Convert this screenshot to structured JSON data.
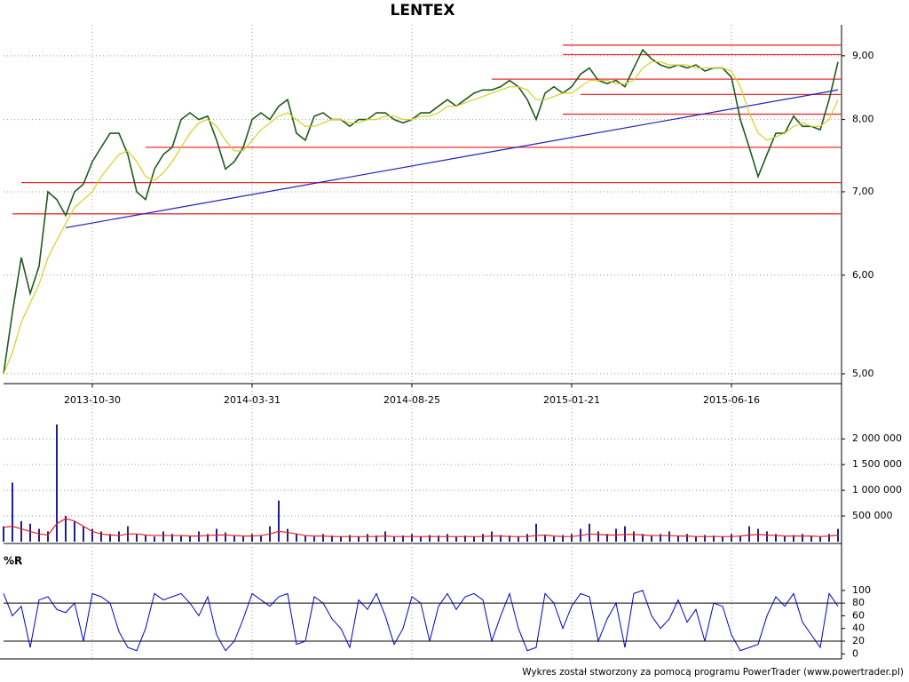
{
  "chart_data": [
    {
      "type": "line",
      "title": "LENTEX",
      "log": true,
      "grid": true,
      "categories": [
        null,
        null,
        null,
        null,
        null,
        null,
        null,
        null,
        null,
        null,
        "2013-10-30",
        null,
        null,
        null,
        null,
        null,
        null,
        null,
        null,
        null,
        null,
        null,
        null,
        null,
        null,
        null,
        null,
        null,
        "2014-03-31",
        null,
        null,
        null,
        null,
        null,
        null,
        null,
        null,
        null,
        null,
        null,
        null,
        null,
        null,
        null,
        null,
        null,
        "2014-08-25",
        null,
        null,
        null,
        null,
        null,
        null,
        null,
        null,
        null,
        null,
        null,
        null,
        null,
        null,
        null,
        null,
        null,
        "2015-01-21",
        null,
        null,
        null,
        null,
        null,
        null,
        null,
        null,
        null,
        null,
        null,
        null,
        null,
        null,
        null,
        null,
        null,
        "2015-06-16",
        null,
        null,
        null,
        null,
        null,
        null,
        null,
        null,
        null,
        null,
        null,
        null
      ],
      "series": [
        {
          "color": "#1f5a1f",
          "values": [
            5.0,
            5.6,
            6.2,
            5.8,
            6.1,
            7.0,
            6.9,
            6.7,
            7.0,
            7.1,
            7.4,
            7.6,
            7.8,
            7.8,
            7.5,
            7.0,
            6.9,
            7.3,
            7.5,
            7.6,
            8.0,
            8.1,
            8.0,
            8.05,
            7.7,
            7.3,
            7.4,
            7.6,
            8.0,
            8.1,
            8.0,
            8.2,
            8.3,
            7.8,
            7.7,
            8.05,
            8.1,
            8.0,
            8.0,
            7.9,
            8.0,
            8.0,
            8.1,
            8.1,
            8.0,
            7.95,
            8.0,
            8.1,
            8.1,
            8.2,
            8.3,
            8.2,
            8.3,
            8.4,
            8.45,
            8.45,
            8.5,
            8.6,
            8.5,
            8.3,
            8.0,
            8.4,
            8.5,
            8.4,
            8.5,
            8.7,
            8.8,
            8.6,
            8.55,
            8.6,
            8.5,
            8.8,
            9.1,
            8.95,
            8.85,
            8.8,
            8.85,
            8.8,
            8.85,
            8.75,
            8.8,
            8.8,
            8.65,
            8.0,
            7.6,
            7.2,
            7.5,
            7.8,
            7.8,
            8.05,
            7.9,
            7.9,
            7.85,
            8.3,
            8.9
          ]
        },
        {
          "color": "#d8d020",
          "values": [
            5.0,
            5.2,
            5.5,
            5.7,
            5.9,
            6.2,
            6.4,
            6.6,
            6.8,
            6.9,
            7.0,
            7.2,
            7.35,
            7.5,
            7.55,
            7.4,
            7.2,
            7.15,
            7.25,
            7.4,
            7.6,
            7.8,
            7.95,
            8.0,
            7.9,
            7.7,
            7.55,
            7.55,
            7.7,
            7.85,
            7.95,
            8.05,
            8.1,
            8.0,
            7.9,
            7.9,
            7.95,
            8.0,
            8.0,
            7.95,
            7.95,
            8.0,
            8.0,
            8.05,
            8.05,
            8.0,
            8.0,
            8.05,
            8.05,
            8.1,
            8.2,
            8.2,
            8.25,
            8.3,
            8.35,
            8.4,
            8.45,
            8.5,
            8.5,
            8.45,
            8.3,
            8.3,
            8.35,
            8.4,
            8.4,
            8.5,
            8.6,
            8.6,
            8.6,
            8.55,
            8.55,
            8.6,
            8.8,
            8.9,
            8.9,
            8.85,
            8.85,
            8.85,
            8.8,
            8.8,
            8.8,
            8.8,
            8.75,
            8.5,
            8.1,
            7.8,
            7.7,
            7.75,
            7.8,
            7.9,
            7.95,
            7.9,
            7.9,
            8.0,
            8.3
          ]
        }
      ],
      "ylim": [
        4.91,
        9.53
      ],
      "yticks": [
        {
          "value": 5,
          "label": "5,00"
        },
        {
          "value": 6,
          "label": "6,00"
        },
        {
          "value": 7,
          "label": "7,00"
        },
        {
          "value": 8,
          "label": "8,00"
        },
        {
          "value": 9,
          "label": "9,00"
        }
      ],
      "levels_color": "#e83030",
      "levels": [
        {
          "value": 9.18,
          "start": 63
        },
        {
          "value": 9.02,
          "start": 63
        },
        {
          "value": 8.62,
          "start": 55
        },
        {
          "value": 8.38,
          "start": 65
        },
        {
          "value": 8.08,
          "start": 63
        },
        {
          "value": 7.6,
          "start": 16
        },
        {
          "value": 7.12,
          "start": 2
        },
        {
          "value": 6.72,
          "start": 1
        }
      ],
      "trendline": {
        "color": "#2020c0",
        "start": [
          7,
          6.55
        ],
        "end": [
          94,
          8.45
        ]
      }
    },
    {
      "type": "bar",
      "grid": true,
      "series": [
        {
          "style": "bar",
          "color": "#20208a",
          "values": [
            300000,
            1150000,
            400000,
            350000,
            250000,
            200000,
            2280000,
            500000,
            400000,
            300000,
            250000,
            200000,
            150000,
            200000,
            300000,
            150000,
            120000,
            100000,
            200000,
            150000,
            130000,
            120000,
            200000,
            150000,
            250000,
            180000,
            120000,
            100000,
            150000,
            120000,
            300000,
            800000,
            250000,
            150000,
            120000,
            100000,
            150000,
            120000,
            100000,
            130000,
            100000,
            150000,
            120000,
            200000,
            100000,
            120000,
            150000,
            100000,
            130000,
            120000,
            150000,
            100000,
            120000,
            100000,
            150000,
            200000,
            130000,
            120000,
            100000,
            150000,
            350000,
            120000,
            100000,
            130000,
            150000,
            250000,
            350000,
            200000,
            150000,
            250000,
            300000,
            200000,
            150000,
            130000,
            150000,
            200000,
            120000,
            150000,
            100000,
            130000,
            120000,
            100000,
            150000,
            120000,
            300000,
            250000,
            200000,
            150000,
            120000,
            130000,
            150000,
            120000,
            100000,
            150000,
            250000
          ]
        },
        {
          "style": "line",
          "color": "#e82020",
          "values": [
            280000,
            300000,
            250000,
            200000,
            150000,
            130000,
            350000,
            450000,
            400000,
            300000,
            200000,
            150000,
            130000,
            120000,
            150000,
            150000,
            130000,
            120000,
            120000,
            120000,
            120000,
            110000,
            110000,
            120000,
            130000,
            130000,
            120000,
            110000,
            110000,
            120000,
            150000,
            200000,
            180000,
            150000,
            120000,
            110000,
            110000,
            100000,
            100000,
            100000,
            100000,
            100000,
            100000,
            110000,
            100000,
            100000,
            100000,
            100000,
            100000,
            100000,
            100000,
            100000,
            100000,
            100000,
            100000,
            110000,
            110000,
            100000,
            100000,
            100000,
            120000,
            130000,
            110000,
            100000,
            100000,
            120000,
            150000,
            140000,
            130000,
            130000,
            140000,
            140000,
            130000,
            120000,
            120000,
            120000,
            110000,
            110000,
            100000,
            100000,
            100000,
            100000,
            100000,
            110000,
            130000,
            140000,
            130000,
            120000,
            110000,
            110000,
            110000,
            110000,
            100000,
            110000,
            130000
          ]
        }
      ],
      "ylim": [
        0,
        2280000
      ],
      "yticks": [
        {
          "value": 500000,
          "label": "500 000"
        },
        {
          "value": 1000000,
          "label": "1 000 000"
        },
        {
          "value": 1500000,
          "label": "1 500 000"
        },
        {
          "value": 2000000,
          "label": "2 000 000"
        }
      ]
    },
    {
      "type": "line",
      "title": "%R",
      "color": "#0000d0",
      "values": [
        95,
        60,
        75,
        10,
        85,
        90,
        70,
        65,
        80,
        20,
        95,
        90,
        80,
        35,
        10,
        5,
        40,
        95,
        85,
        90,
        95,
        80,
        60,
        90,
        30,
        5,
        20,
        55,
        95,
        85,
        75,
        90,
        95,
        15,
        20,
        90,
        80,
        55,
        40,
        10,
        85,
        70,
        95,
        60,
        15,
        40,
        90,
        80,
        20,
        75,
        95,
        70,
        90,
        95,
        85,
        20,
        60,
        95,
        40,
        5,
        10,
        95,
        80,
        40,
        75,
        95,
        90,
        20,
        55,
        80,
        10,
        95,
        100,
        60,
        40,
        55,
        85,
        50,
        70,
        20,
        80,
        75,
        30,
        5,
        10,
        15,
        60,
        90,
        75,
        95,
        50,
        30,
        10,
        95,
        75
      ],
      "ylim": [
        -8,
        118
      ],
      "yticks": [
        0,
        20,
        40,
        60,
        80,
        100
      ],
      "levels": [
        20,
        80
      ]
    }
  ],
  "footer": "Wykres został stworzony za pomocą programu PowerTrader (www.powertrader.pl)"
}
